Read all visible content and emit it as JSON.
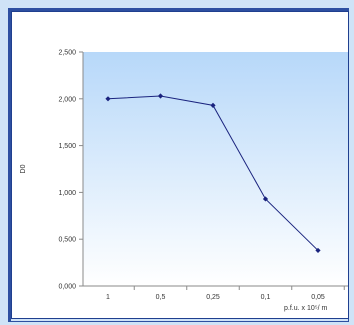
{
  "chart_data": {
    "type": "line",
    "categories": [
      "1",
      "0,5",
      "0,25",
      "0,1",
      "0,05"
    ],
    "series": [
      {
        "values": [
          2.0,
          2.03,
          1.93,
          0.93,
          0.38
        ]
      }
    ],
    "ylim": [
      0,
      2.5
    ],
    "yticks": [
      "0,000",
      "0,500",
      "1,000",
      "1,500",
      "2,000",
      "2,500"
    ],
    "ylabel": "D0",
    "xlabel": "p.f.u. x 10⁵/ m",
    "grid": false,
    "colors": {
      "line": "#1a237e",
      "marker": "#1a237e",
      "plot_top": "#b7d8f9",
      "plot_bottom": "#ffffff",
      "axis": "#8a8a8a",
      "text": "#333333"
    }
  }
}
